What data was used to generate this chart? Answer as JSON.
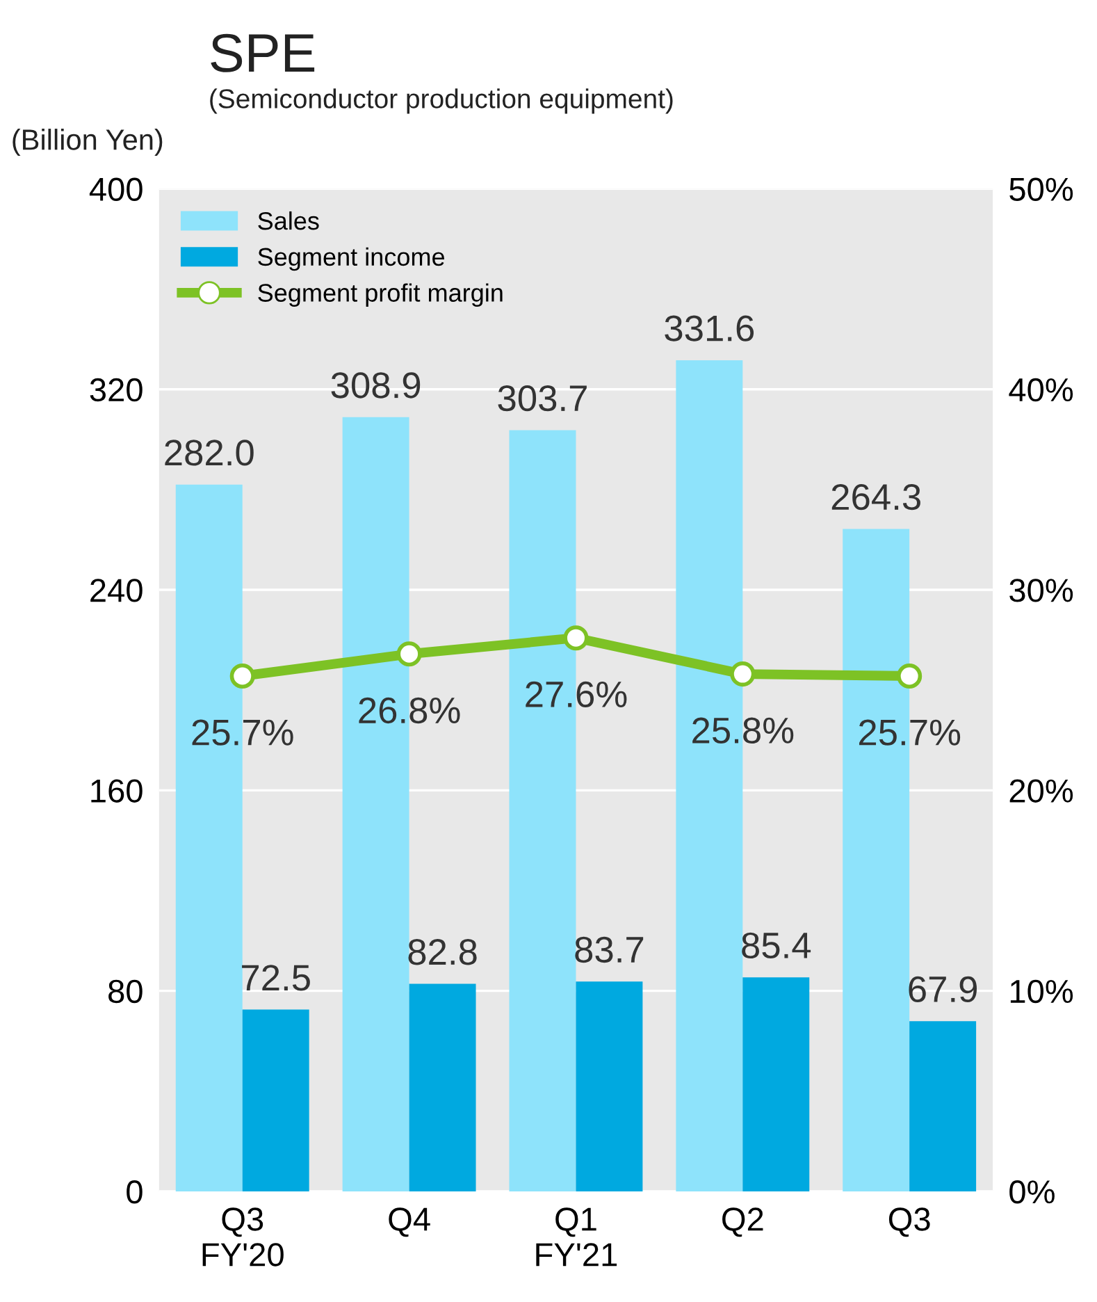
{
  "chart_data": {
    "type": "bar",
    "title": "SPE",
    "subtitle": "(Semiconductor production equipment)",
    "ylabel": "(Billion Yen)",
    "categories": [
      "Q3\nFY'20",
      "Q4",
      "Q1\nFY'21",
      "Q2",
      "Q3"
    ],
    "series": [
      {
        "name": "Sales",
        "color": "#8ee3fb",
        "values": [
          282.0,
          308.9,
          303.7,
          331.6,
          264.3
        ],
        "value_labels": [
          "282.0",
          "308.9",
          "303.7",
          "331.6",
          "264.3"
        ]
      },
      {
        "name": "Segment income",
        "color": "#00a9e0",
        "values": [
          72.5,
          82.8,
          83.7,
          85.4,
          67.9
        ],
        "value_labels": [
          "72.5",
          "82.8",
          "83.7",
          "85.4",
          "67.9"
        ]
      },
      {
        "name": "Segment profit margin",
        "type": "line",
        "axis": "y2",
        "color": "#7dc225",
        "marker": "circle",
        "values": [
          25.7,
          26.8,
          27.6,
          25.8,
          25.7
        ],
        "value_labels": [
          "25.7%",
          "26.8%",
          "27.6%",
          "25.8%",
          "25.7%"
        ]
      }
    ],
    "ylim": [
      0,
      400
    ],
    "yticks": [
      0,
      80,
      160,
      240,
      320,
      400
    ],
    "y2lim": [
      0,
      50
    ],
    "y2ticks": [
      {
        "value": 0,
        "label": "0%"
      },
      {
        "value": 10,
        "label": "10%"
      },
      {
        "value": 20,
        "label": "20%"
      },
      {
        "value": 30,
        "label": "30%"
      },
      {
        "value": 40,
        "label": "40%"
      },
      {
        "value": 50,
        "label": "50%"
      }
    ],
    "grid": "y",
    "legend": "top left"
  }
}
